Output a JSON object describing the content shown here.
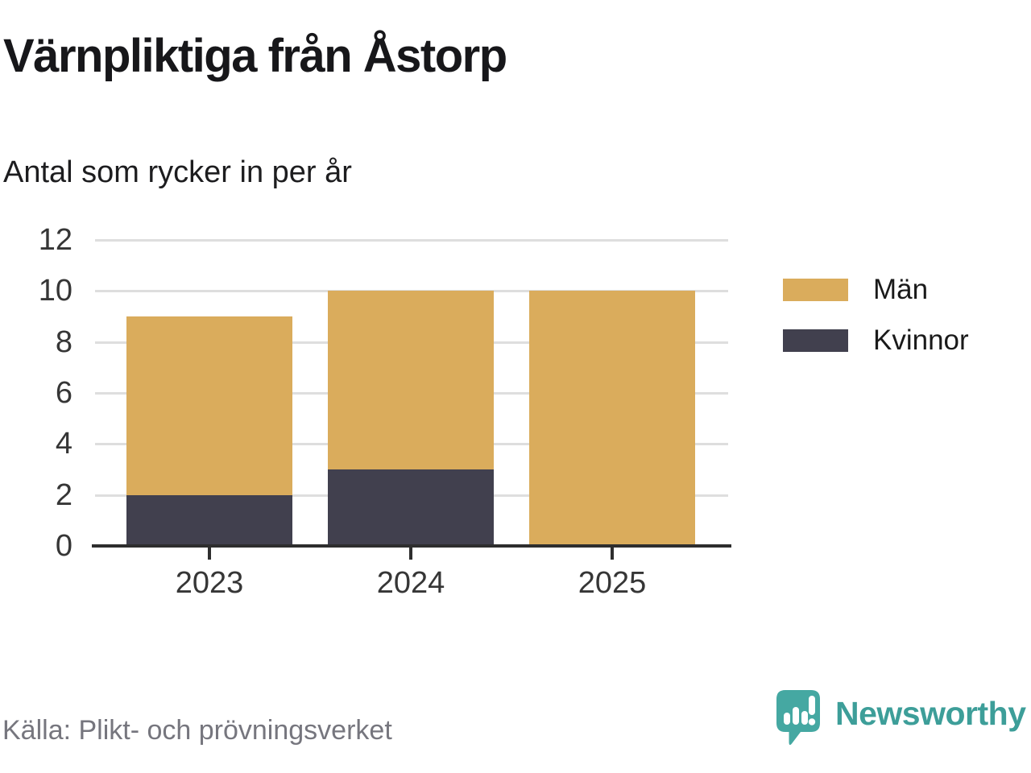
{
  "header": {
    "title": "Värnpliktiga från Åstorp",
    "subtitle": "Antal som rycker in per år"
  },
  "footer": {
    "source": "Källa: Plikt- och prövningsverket",
    "brand": "Newsworthy",
    "brand_color": "#3d9e99",
    "brand_icon_color": "#45a8a2"
  },
  "chart_data": {
    "type": "bar",
    "stacked": true,
    "title": "Värnpliktiga från Åstorp",
    "subtitle": "Antal som rycker in per år",
    "categories": [
      "2023",
      "2024",
      "2025"
    ],
    "series": [
      {
        "name": "Män",
        "color": "#daac5c",
        "values": [
          7,
          7,
          10
        ]
      },
      {
        "name": "Kvinnor",
        "color": "#41404e",
        "values": [
          2,
          3,
          0
        ]
      }
    ],
    "totals": [
      9,
      10,
      10
    ],
    "yticks": [
      0,
      2,
      4,
      6,
      8,
      10,
      12
    ],
    "ylim": [
      0,
      12
    ],
    "xlabel": "",
    "ylabel": "",
    "grid": true,
    "legend_position": "right",
    "colors": {
      "gridline": "#dedede",
      "axis": "#2e2e2e",
      "tick_label": "#363636"
    }
  }
}
